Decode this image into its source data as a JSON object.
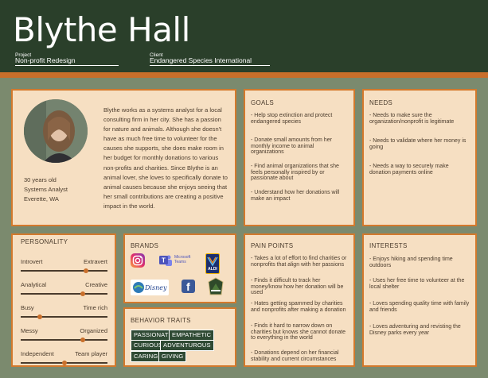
{
  "header": {
    "name": "Blythe Hall",
    "project_label": "Project",
    "project_value": "Non-profit Redesign",
    "client_label": "Client",
    "client_value": "Endangered Species International"
  },
  "profile": {
    "age": "30 years old",
    "job": "Systems Analyst",
    "location": "Everette, WA",
    "bio": "Blythe works as a systems analyst for a local consulting firm in her city. She has a passion for nature and animals. Although she doesn't have as much free time to volunteer for the causes she supports, she does make room in her budget for monthly donations to various non-profits and charities. Since Blythe is an animal lover, she loves to specifically donate to animal causes because she enjoys seeing that her small contributions are creating a positive impact in the world."
  },
  "goals": {
    "title": "GOALS",
    "items": [
      "- Help stop extinction and protect endangered species",
      "- Donate small amounts from her monthly income to animal organizations",
      "- Find animal organizations that she feels personally inspired by or passionate about",
      "- Understand how her donations will make an impact"
    ]
  },
  "needs": {
    "title": "NEEDS",
    "items": [
      "- Needs to make sure the organization/nonprofit is legitimate",
      "- Needs to validate where her money is going",
      "- Needs a way to securely make donation payments online"
    ]
  },
  "personality": {
    "title": "PERSONALITY",
    "scales": [
      {
        "left": "Introvert",
        "right": "Extravert",
        "value": 0.75
      },
      {
        "left": "Analytical",
        "right": "Creative",
        "value": 0.72
      },
      {
        "left": "Busy",
        "right": "Time rich",
        "value": 0.22
      },
      {
        "left": "Messy",
        "right": "Organized",
        "value": 0.72
      },
      {
        "left": "Independent",
        "right": "Team player",
        "value": 0.5
      }
    ]
  },
  "brands": {
    "title": "BRANDS",
    "logos": [
      "instagram-logo",
      "microsoft-teams-logo",
      "aldi-logo",
      "disney-parks-logo",
      "facebook-logo",
      "national-parks-logo"
    ],
    "teams_text": "Microsoft Teams",
    "aldi_text": "ALDI",
    "disney_text": "Disney",
    "facebook_text": "f"
  },
  "behavior": {
    "title": "BEHAVIOR TRAITS",
    "traits": [
      "PASSIONATE",
      "EMPATHETIC",
      "CURIOUS",
      "ADVENTUROUS",
      "CARING",
      "GIVING"
    ]
  },
  "pain_points": {
    "title": "PAIN POINTS",
    "items": [
      "- Takes a lot of effort to find charities or nonprofits that align with her passions",
      "- Finds it difficult to track her money/know how her donation will be used",
      "- Hates getting spammed by charities and nonprofits after making a donation",
      "- Finds it hard to narrow down on charities but knows she cannot donate to everything in the world",
      "- Donations depend on her financial stability and current circumstances"
    ]
  },
  "interests": {
    "title": "INTERESTS",
    "items": [
      "- Enjoys hiking and spending time outdoors",
      "- Uses her free time to volunteer at the local shelter",
      "- Loves spending quality time with family and friends",
      "- Loves adventuring and revisting the Disney parks every year"
    ]
  },
  "colors": {
    "header": "#2a3f2a",
    "accent": "#c96f2b",
    "card": "#f6dfc2",
    "background": "#7b8a6e"
  }
}
